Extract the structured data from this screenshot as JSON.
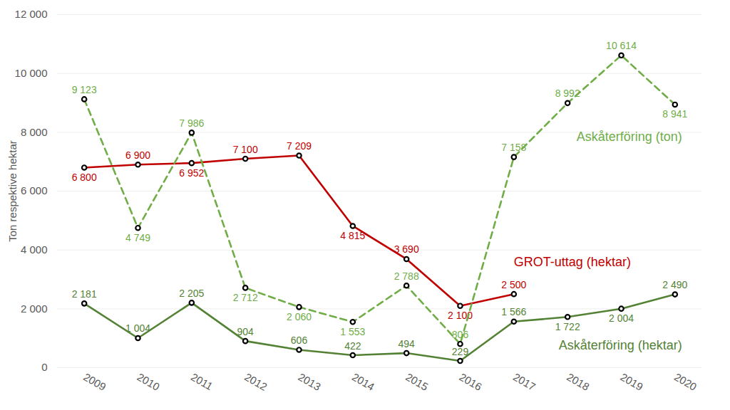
{
  "chart_data": {
    "type": "line",
    "y_label": "Ton respektive hektar",
    "x": [
      2009,
      2010,
      2011,
      2012,
      2013,
      2014,
      2015,
      2016,
      2017,
      2018,
      2019,
      2020
    ],
    "xlim": [
      2008.5,
      2020.5
    ],
    "xticks": [
      2009,
      2010,
      2011,
      2012,
      2013,
      2014,
      2015,
      2016,
      2017,
      2018,
      2019,
      2020
    ],
    "ylim": [
      0,
      12000
    ],
    "yticks": [
      0,
      {
        "value": 2000,
        "label": "2 000"
      },
      {
        "value": 4000,
        "label": "4 000"
      },
      {
        "value": 6000,
        "label": "6 000"
      },
      {
        "value": 8000,
        "label": "8 000"
      },
      {
        "value": 10000,
        "label": "10 000"
      },
      {
        "value": 12000,
        "label": "12 000"
      }
    ],
    "grid": true,
    "data_labels": true,
    "series": [
      {
        "name": "GROT-uttag (hektar)",
        "color": "#c00000",
        "line_style": "solid",
        "marker": "circle",
        "values": [
          6800,
          6900,
          6952,
          7100,
          7209,
          4815,
          3690,
          2100,
          2500,
          null,
          null,
          null
        ],
        "value_labels": [
          "6 800",
          "6 900",
          "6 952",
          "7 100",
          "7 209",
          "4 815",
          "3 690",
          "2 100",
          "2 500",
          null,
          null,
          null
        ]
      },
      {
        "name": "Askåterföring (ton)",
        "color": "#70ad47",
        "line_style": "dashed",
        "marker": "circle",
        "values": [
          9123,
          4749,
          7986,
          2712,
          2060,
          1553,
          2788,
          806,
          7158,
          8992,
          10614,
          8941
        ],
        "value_labels": [
          "9 123",
          "4 749",
          "7 986",
          "2 712",
          "2 060",
          "1 553",
          "2 788",
          "806",
          "7 158",
          "8 992",
          "10 614",
          "8 941"
        ]
      },
      {
        "name": "Askåterföring (hektar)",
        "color": "#548235",
        "line_style": "solid",
        "marker": "circle",
        "values": [
          2181,
          1004,
          2205,
          904,
          606,
          422,
          494,
          229,
          1566,
          1722,
          2004,
          2490
        ],
        "value_labels": [
          "2 181",
          "1 004",
          "2 205",
          "904",
          "606",
          "422",
          "494",
          "229",
          "1 566",
          "1 722",
          "2 004",
          "2 490"
        ]
      }
    ]
  }
}
